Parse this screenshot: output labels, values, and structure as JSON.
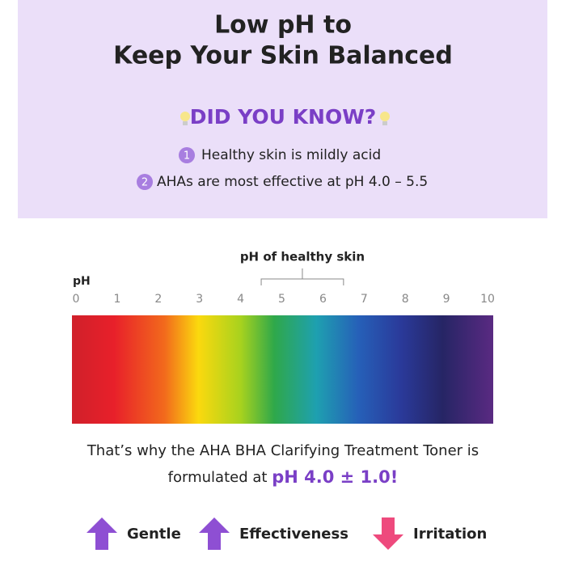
{
  "header": {
    "title_lines": [
      "Low pH to",
      "Keep Your Skin Balanced"
    ]
  },
  "did_you_know": {
    "heading": "DID YOU KNOW?",
    "items": [
      {
        "number": 1,
        "text": "Healthy skin is mildly acid"
      },
      {
        "number": 2,
        "text": "AHAs are most effective at pH 4.0 – 5.5"
      }
    ]
  },
  "scale": {
    "axis_label": "pH",
    "ticks": [
      0,
      1,
      2,
      3,
      4,
      5,
      6,
      7,
      8,
      9,
      10
    ],
    "healthy_label": "pH of healthy skin",
    "healthy_range": [
      4.5,
      6.5
    ]
  },
  "statement": {
    "line1": "That’s why the AHA BHA Clarifying Treatment Toner is",
    "line2_prefix": "formulated at",
    "highlight": "pH 4.0 ± 1.0!"
  },
  "effects": [
    {
      "label": "Gentle",
      "direction": "up"
    },
    {
      "label": "Effectiveness",
      "direction": "up"
    },
    {
      "label": "Irritation",
      "direction": "down"
    }
  ]
}
